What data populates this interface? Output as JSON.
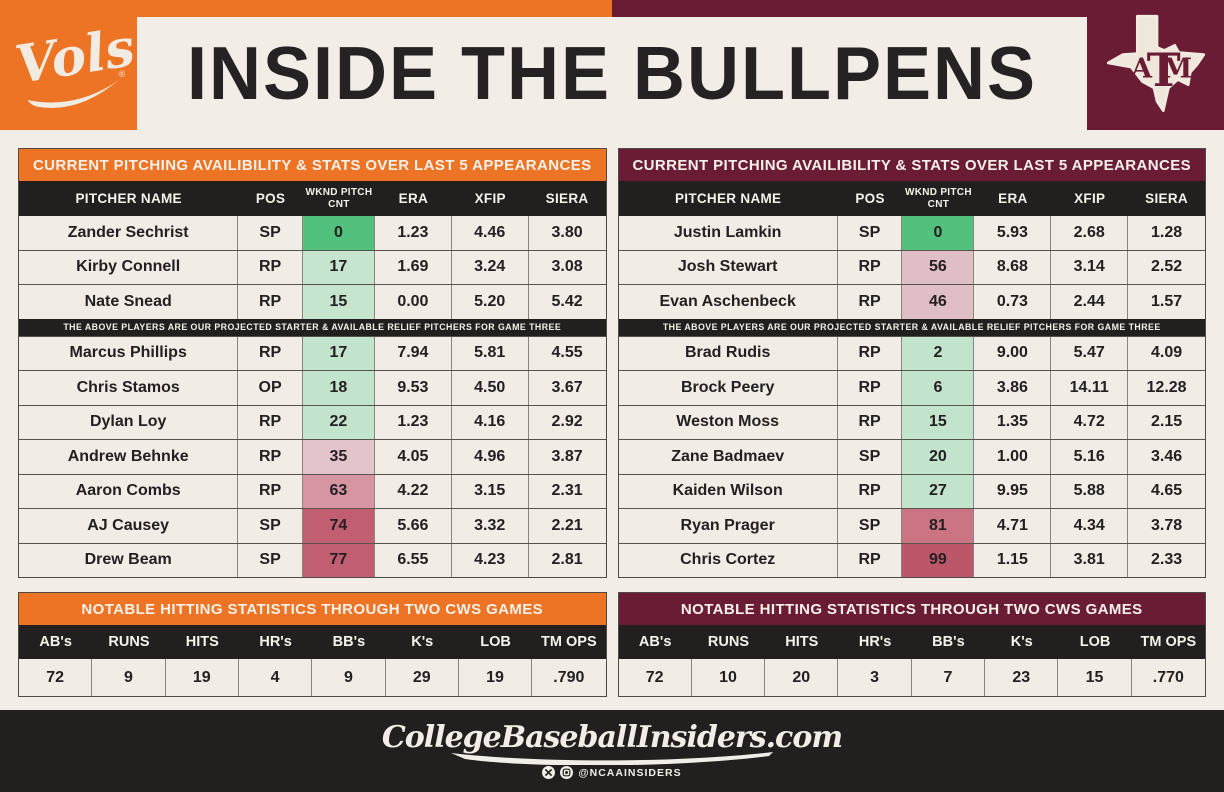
{
  "title": "INSIDE THE BULLPENS",
  "colors": {
    "background": "#F2EDE7",
    "orange": "#ED7424",
    "maroon": "#6B1C35",
    "black_bar": "#221F1E",
    "row_cream": "#F1ECE5",
    "green_bright": "#52C17E",
    "green_light": "#C6E5CE",
    "pink_light": "#E2C2C9",
    "pink_medium": "#D795A4",
    "rose_dark": "#C15E72"
  },
  "teams": {
    "left": {
      "team": "Tennessee Volunteers",
      "logo_text": "Vols",
      "pitching": {
        "banner": "CURRENT PITCHING AVAILIBILITY & STATS OVER LAST 5 APPEARANCES",
        "columns": [
          "PITCHER NAME",
          "POS",
          "WKND PITCH CNT",
          "ERA",
          "XFIP",
          "SIERA"
        ],
        "divider": "THE ABOVE PLAYERS ARE OUR PROJECTED STARTER & AVAILABLE RELIEF PITCHERS FOR GAME THREE",
        "rows": [
          {
            "name": "Zander Sechrist",
            "pos": "SP",
            "cnt": "0",
            "cnt_color": "#52C17E",
            "era": "1.23",
            "xfip": "4.46",
            "siera": "3.80"
          },
          {
            "name": "Kirby Connell",
            "pos": "RP",
            "cnt": "17",
            "cnt_color": "#C6E5CE",
            "era": "1.69",
            "xfip": "3.24",
            "siera": "3.08"
          },
          {
            "name": "Nate Snead",
            "pos": "RP",
            "cnt": "15",
            "cnt_color": "#C6E5CE",
            "era": "0.00",
            "xfip": "5.20",
            "siera": "5.42"
          },
          {
            "name": "Marcus Phillips",
            "pos": "RP",
            "cnt": "17",
            "cnt_color": "#C3E4CC",
            "era": "7.94",
            "xfip": "5.81",
            "siera": "4.55"
          },
          {
            "name": "Chris Stamos",
            "pos": "OP",
            "cnt": "18",
            "cnt_color": "#C3E4CC",
            "era": "9.53",
            "xfip": "4.50",
            "siera": "3.67"
          },
          {
            "name": "Dylan Loy",
            "pos": "RP",
            "cnt": "22",
            "cnt_color": "#C3E4CC",
            "era": "1.23",
            "xfip": "4.16",
            "siera": "2.92"
          },
          {
            "name": "Andrew Behnke",
            "pos": "RP",
            "cnt": "35",
            "cnt_color": "#E3C4CB",
            "era": "4.05",
            "xfip": "4.96",
            "siera": "3.87"
          },
          {
            "name": "Aaron Combs",
            "pos": "RP",
            "cnt": "63",
            "cnt_color": "#D795A4",
            "era": "4.22",
            "xfip": "3.15",
            "siera": "2.31"
          },
          {
            "name": "AJ Causey",
            "pos": "SP",
            "cnt": "74",
            "cnt_color": "#C15E72",
            "era": "5.66",
            "xfip": "3.32",
            "siera": "2.21"
          },
          {
            "name": "Drew Beam",
            "pos": "SP",
            "cnt": "77",
            "cnt_color": "#C15E72",
            "era": "6.55",
            "xfip": "4.23",
            "siera": "2.81"
          }
        ]
      },
      "hitting": {
        "banner": "NOTABLE HITTING STATISTICS THROUGH TWO CWS GAMES",
        "columns": [
          "AB's",
          "RUNS",
          "HITS",
          "HR's",
          "BB's",
          "K's",
          "LOB",
          "TM OPS"
        ],
        "values": [
          "72",
          "9",
          "19",
          "4",
          "9",
          "29",
          "19",
          ".790"
        ]
      }
    },
    "right": {
      "team": "Texas A&M Aggies",
      "logo_text": "ATM",
      "pitching": {
        "banner": "CURRENT PITCHING AVAILIBILITY & STATS OVER LAST 5 APPEARANCES",
        "columns": [
          "PITCHER NAME",
          "POS",
          "WKND PITCH CNT",
          "ERA",
          "XFIP",
          "SIERA"
        ],
        "divider": "THE ABOVE PLAYERS ARE OUR PROJECTED STARTER & AVAILABLE RELIEF PITCHERS FOR GAME THREE",
        "rows": [
          {
            "name": "Justin Lamkin",
            "pos": "SP",
            "cnt": "0",
            "cnt_color": "#52C17E",
            "era": "5.93",
            "xfip": "2.68",
            "siera": "1.28"
          },
          {
            "name": "Josh Stewart",
            "pos": "RP",
            "cnt": "56",
            "cnt_color": "#E0BEC6",
            "era": "8.68",
            "xfip": "3.14",
            "siera": "2.52"
          },
          {
            "name": "Evan Aschenbeck",
            "pos": "RP",
            "cnt": "46",
            "cnt_color": "#E0BEC6",
            "era": "0.73",
            "xfip": "2.44",
            "siera": "1.57"
          },
          {
            "name": "Brad Rudis",
            "pos": "RP",
            "cnt": "2",
            "cnt_color": "#C3E4CC",
            "era": "9.00",
            "xfip": "5.47",
            "siera": "4.09"
          },
          {
            "name": "Brock Peery",
            "pos": "RP",
            "cnt": "6",
            "cnt_color": "#C3E4CC",
            "era": "3.86",
            "xfip": "14.11",
            "siera": "12.28"
          },
          {
            "name": "Weston Moss",
            "pos": "RP",
            "cnt": "15",
            "cnt_color": "#C3E4CC",
            "era": "1.35",
            "xfip": "4.72",
            "siera": "2.15"
          },
          {
            "name": "Zane Badmaev",
            "pos": "SP",
            "cnt": "20",
            "cnt_color": "#C3E4CC",
            "era": "1.00",
            "xfip": "5.16",
            "siera": "3.46"
          },
          {
            "name": "Kaiden Wilson",
            "pos": "RP",
            "cnt": "27",
            "cnt_color": "#C3E4CC",
            "era": "9.95",
            "xfip": "5.88",
            "siera": "4.65"
          },
          {
            "name": "Ryan Prager",
            "pos": "SP",
            "cnt": "81",
            "cnt_color": "#CA7484",
            "era": "4.71",
            "xfip": "4.34",
            "siera": "3.78"
          },
          {
            "name": "Chris Cortez",
            "pos": "RP",
            "cnt": "99",
            "cnt_color": "#BC5669",
            "era": "1.15",
            "xfip": "3.81",
            "siera": "2.33"
          }
        ]
      },
      "hitting": {
        "banner": "NOTABLE HITTING STATISTICS THROUGH TWO CWS GAMES",
        "columns": [
          "AB's",
          "RUNS",
          "HITS",
          "HR's",
          "BB's",
          "K's",
          "LOB",
          "TM OPS"
        ],
        "values": [
          "72",
          "10",
          "20",
          "3",
          "7",
          "23",
          "15",
          ".770"
        ]
      }
    }
  },
  "footer": {
    "site": "CollegeBaseballInsiders.com",
    "handle": "@NCAAINSIDERS",
    "icons": [
      "x-twitter-icon",
      "instagram-icon"
    ]
  },
  "chart_data": [
    {
      "type": "table",
      "title": "Tennessee — Current pitching availibility & stats over last 5 appearances",
      "columns": [
        "Pitcher Name",
        "POS",
        "WKND Pitch CNT",
        "ERA",
        "XFIP",
        "SIERA"
      ],
      "rows": [
        [
          "Zander Sechrist",
          "SP",
          0,
          1.23,
          4.46,
          3.8
        ],
        [
          "Kirby Connell",
          "RP",
          17,
          1.69,
          3.24,
          3.08
        ],
        [
          "Nate Snead",
          "RP",
          15,
          0.0,
          5.2,
          5.42
        ],
        [
          "Marcus Phillips",
          "RP",
          17,
          7.94,
          5.81,
          4.55
        ],
        [
          "Chris Stamos",
          "OP",
          18,
          9.53,
          4.5,
          3.67
        ],
        [
          "Dylan Loy",
          "RP",
          22,
          1.23,
          4.16,
          2.92
        ],
        [
          "Andrew Behnke",
          "RP",
          35,
          4.05,
          4.96,
          3.87
        ],
        [
          "Aaron Combs",
          "RP",
          63,
          4.22,
          3.15,
          2.31
        ],
        [
          "AJ Causey",
          "SP",
          74,
          5.66,
          3.32,
          2.21
        ],
        [
          "Drew Beam",
          "SP",
          77,
          6.55,
          4.23,
          2.81
        ]
      ]
    },
    {
      "type": "table",
      "title": "Texas A&M — Current pitching availibility & stats over last 5 appearances",
      "columns": [
        "Pitcher Name",
        "POS",
        "WKND Pitch CNT",
        "ERA",
        "XFIP",
        "SIERA"
      ],
      "rows": [
        [
          "Justin Lamkin",
          "SP",
          0,
          5.93,
          2.68,
          1.28
        ],
        [
          "Josh Stewart",
          "RP",
          56,
          8.68,
          3.14,
          2.52
        ],
        [
          "Evan Aschenbeck",
          "RP",
          46,
          0.73,
          2.44,
          1.57
        ],
        [
          "Brad Rudis",
          "RP",
          2,
          9.0,
          5.47,
          4.09
        ],
        [
          "Brock Peery",
          "RP",
          6,
          3.86,
          14.11,
          12.28
        ],
        [
          "Weston Moss",
          "RP",
          15,
          1.35,
          4.72,
          2.15
        ],
        [
          "Zane Badmaev",
          "SP",
          20,
          1.0,
          5.16,
          3.46
        ],
        [
          "Kaiden Wilson",
          "RP",
          27,
          9.95,
          5.88,
          4.65
        ],
        [
          "Ryan Prager",
          "SP",
          81,
          4.71,
          4.34,
          3.78
        ],
        [
          "Chris Cortez",
          "RP",
          99,
          1.15,
          3.81,
          2.33
        ]
      ]
    },
    {
      "type": "table",
      "title": "Tennessee — Notable hitting statistics through two CWS games",
      "columns": [
        "AB's",
        "RUNS",
        "HITS",
        "HR's",
        "BB's",
        "K's",
        "LOB",
        "TM OPS"
      ],
      "rows": [
        [
          72,
          9,
          19,
          4,
          9,
          29,
          19,
          0.79
        ]
      ]
    },
    {
      "type": "table",
      "title": "Texas A&M — Notable hitting statistics through two CWS games",
      "columns": [
        "AB's",
        "RUNS",
        "HITS",
        "HR's",
        "BB's",
        "K's",
        "LOB",
        "TM OPS"
      ],
      "rows": [
        [
          72,
          10,
          20,
          3,
          7,
          23,
          15,
          0.77
        ]
      ]
    }
  ]
}
